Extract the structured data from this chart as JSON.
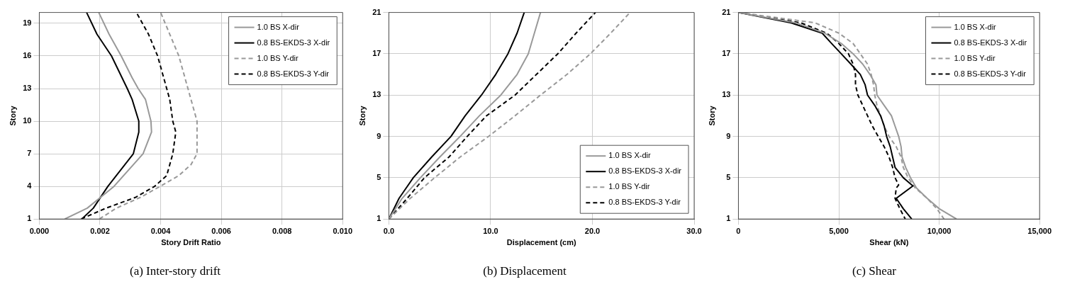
{
  "chart_data": [
    {
      "type": "line",
      "title": "(a) Inter-story drift",
      "xlabel": "Story Drift Ratio",
      "ylabel": "Story",
      "xlim": [
        0,
        0.01
      ],
      "xticks": [
        {
          "value": 0,
          "label": "0.000"
        },
        {
          "value": 0.002,
          "label": "0.002"
        },
        {
          "value": 0.004,
          "label": "0.004"
        },
        {
          "value": 0.006,
          "label": "0.006"
        },
        {
          "value": 0.008,
          "label": "0.008"
        },
        {
          "value": 0.01,
          "label": "0.010"
        }
      ],
      "ylim": [
        1,
        20
      ],
      "yticks": [
        1,
        4,
        7,
        10,
        13,
        16,
        19
      ],
      "grid": true,
      "legend": "top right",
      "series": [
        {
          "name": "1.0 BS X-dir",
          "color": "#999999",
          "line_style": "solid",
          "x": [
            0.00084,
            0.00158,
            0.00246,
            0.00342,
            0.0037,
            0.00368,
            0.0035,
            0.00326,
            0.00306,
            0.0027,
            0.0023,
            0.00196
          ],
          "values": [
            1,
            2,
            4,
            7,
            9,
            10,
            12,
            13,
            14,
            16,
            18,
            20
          ]
        },
        {
          "name": "0.8 BS-EKDS-3 X-dir",
          "color": "#000000",
          "line_style": "solid",
          "x": [
            0.0014,
            0.00178,
            0.00226,
            0.0031,
            0.00328,
            0.00328,
            0.00306,
            0.0029,
            0.00238,
            0.0019,
            0.00156
          ],
          "values": [
            1,
            2,
            4,
            7,
            9,
            10,
            12,
            13,
            16,
            18,
            20
          ]
        },
        {
          "name": "1.0 BS Y-dir",
          "color": "#999999",
          "line_style": "dashed",
          "x": [
            0.00198,
            0.00254,
            0.00334,
            0.00398,
            0.0046,
            0.005,
            0.0052,
            0.0052,
            0.0052,
            0.005,
            0.0049,
            0.0046,
            0.0043,
            0.004
          ],
          "values": [
            1,
            2,
            3,
            4,
            5,
            6,
            7,
            9,
            10,
            12,
            13,
            16,
            18,
            20
          ]
        },
        {
          "name": "0.8 BS-EKDS-3 Y-dir",
          "color": "#000000",
          "line_style": "dashed",
          "x": [
            0.00138,
            0.0022,
            0.00318,
            0.0038,
            0.0042,
            0.0044,
            0.0045,
            0.0044,
            0.0043,
            0.0042,
            0.0039,
            0.0036,
            0.0032
          ],
          "values": [
            1,
            2,
            3,
            4,
            5,
            7,
            9,
            10,
            12,
            13,
            16,
            18,
            20
          ]
        }
      ]
    },
    {
      "type": "line",
      "title": "(b) Displacement",
      "xlabel": "Displacement (cm)",
      "ylabel": "Story",
      "xlim": [
        0,
        30
      ],
      "xticks": [
        {
          "value": 0,
          "label": "0.0"
        },
        {
          "value": 10,
          "label": "10.0"
        },
        {
          "value": 20,
          "label": "20.0"
        },
        {
          "value": 30,
          "label": "30.0"
        }
      ],
      "ylim": [
        1,
        21
      ],
      "yticks": [
        1,
        5,
        9,
        13,
        17,
        21
      ],
      "grid": true,
      "legend": "bottom right",
      "series": [
        {
          "name": "1.0 BS X-dir",
          "color": "#999999",
          "line_style": "solid",
          "x": [
            0,
            1.3,
            3.1,
            5.0,
            7.0,
            8.9,
            11.0,
            12.6,
            13.7,
            14.3,
            14.9
          ],
          "values": [
            1,
            3,
            5,
            7,
            9,
            11,
            13,
            15,
            17,
            19,
            21
          ]
        },
        {
          "name": "0.8 BS-EKDS-3 X-dir",
          "color": "#000000",
          "line_style": "solid",
          "x": [
            0,
            1.0,
            2.4,
            4.2,
            6.1,
            7.5,
            9.1,
            10.5,
            11.7,
            12.6,
            13.3
          ],
          "values": [
            1,
            3,
            5,
            7,
            9,
            11,
            13,
            15,
            17,
            19,
            21
          ]
        },
        {
          "name": "1.0 BS Y-dir",
          "color": "#999999",
          "line_style": "dashed",
          "x": [
            0,
            2.1,
            4.5,
            7.0,
            9.8,
            12.4,
            14.9,
            17.5,
            19.8,
            21.8,
            23.7
          ],
          "values": [
            1,
            3,
            5,
            7,
            9,
            11,
            13,
            15,
            17,
            19,
            21
          ]
        },
        {
          "name": "0.8 BS-EKDS-3 Y-dir",
          "color": "#000000",
          "line_style": "dashed",
          "x": [
            0,
            1.8,
            3.5,
            5.9,
            7.7,
            9.6,
            12.4,
            14.5,
            16.6,
            18.4,
            20.3
          ],
          "values": [
            1,
            3,
            5,
            7,
            9,
            11,
            13,
            15,
            17,
            19,
            21
          ]
        }
      ]
    },
    {
      "type": "line",
      "title": "(c) Shear",
      "xlabel": "Shear (kN)",
      "ylabel": "Story",
      "xlim": [
        0,
        15000
      ],
      "xticks": [
        {
          "value": 0,
          "label": "0"
        },
        {
          "value": 5000,
          "label": "5,000"
        },
        {
          "value": 10000,
          "label": "10,000"
        },
        {
          "value": 15000,
          "label": "15,000"
        }
      ],
      "ylim": [
        1,
        21
      ],
      "yticks": [
        1,
        5,
        9,
        13,
        17,
        21
      ],
      "grid": true,
      "legend": "top right",
      "series": [
        {
          "name": "1.0 BS X-dir",
          "color": "#999999",
          "line_style": "solid",
          "x": [
            0,
            2860,
            4290,
            5120,
            5710,
            6190,
            6550,
            6850,
            6900,
            7260,
            7620,
            7800,
            7980,
            8100,
            8150,
            8330,
            8570,
            8870,
            9400,
            10000,
            10860
          ],
          "values": [
            21,
            20,
            19,
            18,
            17,
            16,
            15,
            14,
            13,
            12,
            11,
            10,
            9,
            8,
            7,
            6,
            5,
            4,
            3,
            2,
            1
          ]
        },
        {
          "name": "0.8 BS-EKDS-3 X-dir",
          "color": "#000000",
          "line_style": "solid",
          "x": [
            0,
            2620,
            4170,
            4640,
            5120,
            5600,
            6070,
            6310,
            6430,
            6790,
            7080,
            7260,
            7380,
            7560,
            7680,
            7800,
            8210,
            8690,
            7860,
            8210,
            8630
          ],
          "values": [
            21,
            20,
            19,
            18,
            17,
            16,
            15,
            14,
            13,
            12,
            11,
            10,
            9,
            8,
            7,
            6,
            5,
            4.2,
            3,
            2,
            1
          ]
        },
        {
          "name": "1.0 BS Y-dir",
          "color": "#999999",
          "line_style": "dashed",
          "x": [
            0,
            3810,
            5000,
            5710,
            6070,
            6430,
            6610,
            6730,
            6790,
            6900,
            7080,
            7260,
            7500,
            7860,
            8100,
            8210,
            8450,
            8810,
            9400,
            9880,
            10240
          ],
          "values": [
            21,
            20,
            19,
            18,
            17,
            16,
            15,
            14,
            13,
            12,
            11,
            10,
            9,
            8,
            7,
            6,
            5,
            4,
            3,
            2,
            1
          ]
        },
        {
          "name": "0.8 BS-EKDS-3 Y-dir",
          "color": "#000000",
          "line_style": "dashed",
          "x": [
            0,
            3100,
            4400,
            5000,
            5480,
            5710,
            5830,
            5830,
            5950,
            6190,
            6430,
            6670,
            6960,
            7260,
            7500,
            7680,
            7800,
            7980,
            7860,
            7800,
            8040,
            8310
          ],
          "values": [
            21,
            20,
            19,
            18,
            17,
            16,
            15,
            14,
            13,
            12,
            11,
            10,
            9,
            8,
            7,
            6,
            5,
            4.3,
            4,
            3,
            2,
            1
          ]
        }
      ]
    }
  ]
}
